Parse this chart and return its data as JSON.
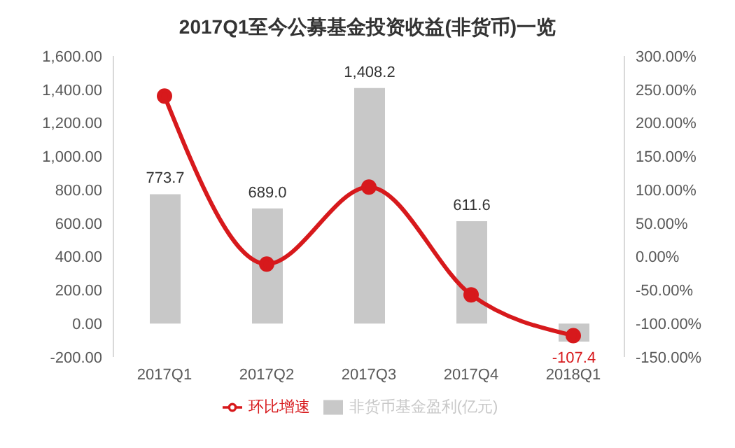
{
  "chart_data": {
    "type": "bar",
    "title": "2017Q1至今公募基金投资收益(非货币)一览",
    "categories": [
      "2017Q1",
      "2017Q2",
      "2017Q3",
      "2017Q4",
      "2018Q1"
    ],
    "series": [
      {
        "name": "非货币基金盈利(亿元)",
        "color": "#c8c8c8",
        "values": [
          773.7,
          689.0,
          1408.2,
          611.6,
          -107.4
        ],
        "value_labels": [
          "773.7",
          "689.0",
          "1,408.2",
          "611.6",
          "-107.4"
        ]
      },
      {
        "name": "环比增速",
        "type": "line",
        "axis": "y2",
        "color": "#d7191c",
        "values": [
          240,
          -11,
          104,
          -57,
          -118
        ]
      }
    ],
    "ylim": [
      -200,
      1600
    ],
    "yticks": [
      {
        "value": -200,
        "label": "-200.00"
      },
      {
        "value": 0,
        "label": "0.00"
      },
      {
        "value": 200,
        "label": "200.00"
      },
      {
        "value": 400,
        "label": "400.00"
      },
      {
        "value": 600,
        "label": "600.00"
      },
      {
        "value": 800,
        "label": "800.00"
      },
      {
        "value": 1000,
        "label": "1,000.00"
      },
      {
        "value": 1200,
        "label": "1,200.00"
      },
      {
        "value": 1400,
        "label": "1,400.00"
      },
      {
        "value": 1600,
        "label": "1,600.00"
      }
    ],
    "y2lim": [
      -150,
      300
    ],
    "y2ticks": [
      {
        "value": -150,
        "label": "-150.00%"
      },
      {
        "value": -100,
        "label": "-100.00%"
      },
      {
        "value": -50,
        "label": "-50.00%"
      },
      {
        "value": 0,
        "label": "0.00%"
      },
      {
        "value": 50,
        "label": "50.00%"
      },
      {
        "value": 100,
        "label": "100.00%"
      },
      {
        "value": 150,
        "label": "150.00%"
      },
      {
        "value": 200,
        "label": "200.00%"
      },
      {
        "value": 250,
        "label": "250.00%"
      },
      {
        "value": 300,
        "label": "300.00%"
      }
    ],
    "legend": "bottom",
    "marker": "circle",
    "grid": false
  }
}
